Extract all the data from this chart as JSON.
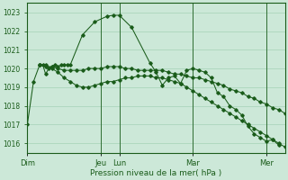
{
  "background_color": "#cce8d8",
  "plot_bg_color": "#cce8d8",
  "grid_color": "#b0d8c0",
  "line_color": "#1a5c1a",
  "xlabel": "Pression niveau de la mer( hPa )",
  "ylim": [
    1015.5,
    1023.5
  ],
  "yticks": [
    1016,
    1017,
    1018,
    1019,
    1020,
    1021,
    1022,
    1023
  ],
  "day_labels": [
    "Dim",
    "Jeu",
    "Lun",
    "Mar",
    "Mer"
  ],
  "day_positions": [
    0.0,
    0.286,
    0.357,
    0.643,
    0.929
  ],
  "xlim": [
    0.0,
    1.0
  ],
  "series": [
    {
      "x": [
        0.0,
        0.024,
        0.048,
        0.06,
        0.071,
        0.083,
        0.095,
        0.107,
        0.119,
        0.131,
        0.143,
        0.155,
        0.167,
        0.214,
        0.262,
        0.31,
        0.333,
        0.357,
        0.405,
        0.476,
        0.5,
        0.524,
        0.548,
        0.571,
        0.595,
        0.619,
        0.643,
        0.667,
        0.69,
        0.714,
        0.738,
        0.762,
        0.786,
        0.81,
        0.833,
        0.857,
        0.881,
        0.905,
        0.929,
        0.952,
        0.976
      ],
      "y": [
        1017.0,
        1019.3,
        1020.2,
        1020.2,
        1019.7,
        1020.0,
        1020.1,
        1020.2,
        1020.1,
        1020.2,
        1020.2,
        1020.2,
        1020.2,
        1021.8,
        1022.5,
        1022.8,
        1022.85,
        1022.85,
        1022.2,
        1020.3,
        1019.8,
        1019.1,
        1019.5,
        1019.6,
        1019.2,
        1019.9,
        1020.0,
        1019.9,
        1019.8,
        1019.5,
        1018.7,
        1018.5,
        1018.0,
        1017.8,
        1017.5,
        1016.9,
        1016.5,
        1016.3,
        1016.1,
        1016.2,
        1015.9
      ]
    },
    {
      "x": [
        0.048,
        0.071,
        0.095,
        0.119,
        0.143,
        0.167,
        0.19,
        0.214,
        0.238,
        0.262,
        0.286,
        0.31,
        0.333,
        0.357,
        0.381,
        0.405,
        0.429,
        0.452,
        0.476,
        0.5,
        0.524,
        0.548,
        0.571,
        0.595,
        0.619,
        0.643,
        0.667,
        0.69,
        0.714,
        0.738,
        0.762,
        0.786,
        0.81,
        0.833,
        0.857,
        0.881,
        0.905,
        0.929,
        0.952,
        0.976,
        1.0
      ],
      "y": [
        1020.2,
        1020.2,
        1020.0,
        1019.8,
        1019.5,
        1019.3,
        1019.1,
        1019.0,
        1019.0,
        1019.1,
        1019.2,
        1019.3,
        1019.3,
        1019.4,
        1019.5,
        1019.5,
        1019.6,
        1019.6,
        1019.6,
        1019.5,
        1019.5,
        1019.4,
        1019.3,
        1019.2,
        1019.0,
        1018.8,
        1018.6,
        1018.4,
        1018.2,
        1018.0,
        1017.8,
        1017.6,
        1017.4,
        1017.2,
        1017.0,
        1016.8,
        1016.6,
        1016.4,
        1016.2,
        1016.0,
        1015.8
      ]
    },
    {
      "x": [
        0.048,
        0.071,
        0.095,
        0.119,
        0.143,
        0.167,
        0.19,
        0.214,
        0.238,
        0.262,
        0.286,
        0.31,
        0.333,
        0.357,
        0.381,
        0.405,
        0.429,
        0.452,
        0.476,
        0.5,
        0.524,
        0.548,
        0.571,
        0.595,
        0.619,
        0.643,
        0.667,
        0.69,
        0.714,
        0.738,
        0.762,
        0.786,
        0.81,
        0.833,
        0.857,
        0.881,
        0.905,
        0.929,
        0.952,
        0.976,
        1.0
      ],
      "y": [
        1020.2,
        1020.1,
        1020.1,
        1020.0,
        1019.9,
        1019.9,
        1019.9,
        1019.9,
        1020.0,
        1020.0,
        1020.0,
        1020.1,
        1020.1,
        1020.1,
        1020.0,
        1020.0,
        1019.9,
        1019.9,
        1019.9,
        1019.9,
        1019.9,
        1019.8,
        1019.7,
        1019.7,
        1019.6,
        1019.5,
        1019.5,
        1019.4,
        1019.3,
        1019.2,
        1019.1,
        1018.9,
        1018.8,
        1018.7,
        1018.5,
        1018.4,
        1018.2,
        1018.1,
        1017.9,
        1017.8,
        1017.6
      ]
    }
  ],
  "figsize": [
    3.2,
    2.0
  ],
  "dpi": 100
}
